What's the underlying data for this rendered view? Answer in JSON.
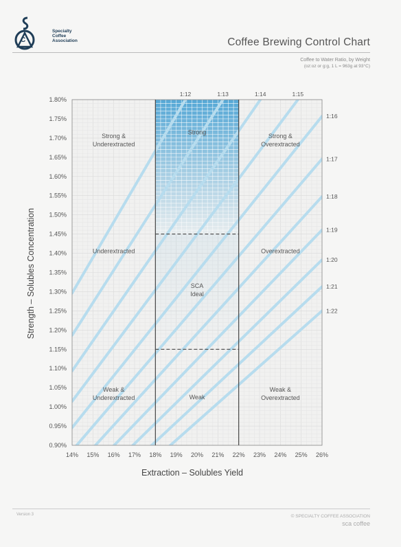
{
  "header": {
    "org_line1": "Specialty",
    "org_line2": "Coffee",
    "org_line3": "Association",
    "title": "Coffee Brewing Control Chart",
    "ratio_title": "Coffee to Water Ratio, by Weight",
    "ratio_note": "(oz:oz or g:g, 1 L = 963g at 93°C)"
  },
  "footer": {
    "version": "Version 3",
    "copyright": "© SPECIALTY COFFEE ASSOCIATION",
    "brand": "sca coffee"
  },
  "colors": {
    "line": "#b7dcee",
    "ideal_fill": "#3a9bd1",
    "frame": "#555555",
    "logo": "#1f3d57"
  },
  "chart_data": {
    "type": "line",
    "xlabel": "Extraction – Solubles Yield",
    "ylabel": "Strength – Solubles Concentration",
    "xlim": [
      14,
      26
    ],
    "ylim": [
      0.9,
      1.8
    ],
    "x_ticks": [
      "14%",
      "15%",
      "16%",
      "17%",
      "18%",
      "19%",
      "20%",
      "21%",
      "22%",
      "23%",
      "24%",
      "25%",
      "26%"
    ],
    "y_ticks": [
      "0.90%",
      "0.95%",
      "1.00%",
      "1.05%",
      "1.10%",
      "1.15%",
      "1.20%",
      "1.25%",
      "1.30%",
      "1.35%",
      "1.40%",
      "1.45%",
      "1.50%",
      "1.55%",
      "1.60%",
      "1.65%",
      "1.70%",
      "1.75%",
      "1.80%"
    ],
    "ideal_zone": {
      "extraction": [
        18,
        22
      ],
      "strength": [
        1.15,
        1.45
      ]
    },
    "strong_zone": {
      "extraction": [
        18,
        22
      ],
      "strength": [
        1.45,
        1.8
      ]
    },
    "ratio_lines": [
      {
        "label": "1:12",
        "ratio": 12,
        "edge": "top"
      },
      {
        "label": "1:13",
        "ratio": 13,
        "edge": "top"
      },
      {
        "label": "1:14",
        "ratio": 14,
        "edge": "top"
      },
      {
        "label": "1:15",
        "ratio": 15,
        "edge": "top"
      },
      {
        "label": "1:16",
        "ratio": 16,
        "edge": "right"
      },
      {
        "label": "1:17",
        "ratio": 17,
        "edge": "right"
      },
      {
        "label": "1:18",
        "ratio": 18,
        "edge": "right"
      },
      {
        "label": "1:19",
        "ratio": 19,
        "edge": "right"
      },
      {
        "label": "1:20",
        "ratio": 20,
        "edge": "right"
      },
      {
        "label": "1:21",
        "ratio": 21,
        "edge": "right"
      },
      {
        "label": "1:22",
        "ratio": 22,
        "edge": "right"
      }
    ],
    "regions": [
      {
        "lines": [
          "Strong &",
          "Underextracted"
        ],
        "x": 16,
        "y": 1.7
      },
      {
        "lines": [
          "Strong"
        ],
        "x": 20,
        "y": 1.71
      },
      {
        "lines": [
          "Strong &",
          "Overextracted"
        ],
        "x": 24,
        "y": 1.7
      },
      {
        "lines": [
          "Underextracted"
        ],
        "x": 16,
        "y": 1.4
      },
      {
        "lines": [
          "SCA",
          "Ideal"
        ],
        "x": 20,
        "y": 1.31,
        "muted": true
      },
      {
        "lines": [
          "Overextracted"
        ],
        "x": 24,
        "y": 1.4
      },
      {
        "lines": [
          "Weak &",
          "Underextracted"
        ],
        "x": 16,
        "y": 1.04
      },
      {
        "lines": [
          "Weak"
        ],
        "x": 20,
        "y": 1.02
      },
      {
        "lines": [
          "Weak &",
          "Overextracted"
        ],
        "x": 24,
        "y": 1.04
      }
    ]
  }
}
